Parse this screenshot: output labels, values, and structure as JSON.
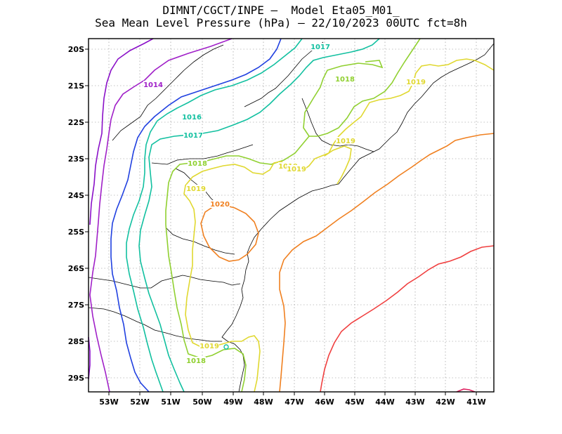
{
  "title": {
    "line1": "DIMNT/CGCT/INPE –  Model Eta05_M01_",
    "line2": "Sea Mean Level Pressure (hPa) – 22/10/2023 00UTC fct=8h"
  },
  "axes": {
    "lon_ticks": [
      "53W",
      "52W",
      "51W",
      "50W",
      "49W",
      "48W",
      "47W",
      "46W",
      "45W",
      "44W",
      "43W",
      "42W",
      "41W"
    ],
    "lat_ticks": [
      "20S",
      "21S",
      "22S",
      "23S",
      "24S",
      "25S",
      "26S",
      "27S",
      "28S",
      "29S"
    ]
  },
  "contour_labels": [
    {
      "text": "1014",
      "color": "#a020c8"
    },
    {
      "text": "1016",
      "color": "#12c0a0"
    },
    {
      "text": "1017",
      "color": "#12c0a0"
    },
    {
      "text": "1017",
      "color": "#12c0a0"
    },
    {
      "text": "1018",
      "color": "#90d030"
    },
    {
      "text": "1018",
      "color": "#90d030"
    },
    {
      "text": "1018",
      "color": "#90d030"
    },
    {
      "text": "1019",
      "color": "#e0d830"
    },
    {
      "text": "1019",
      "color": "#e0d830"
    },
    {
      "text": "1019",
      "color": "#e0d830"
    },
    {
      "text": "1019",
      "color": "#e0d830"
    },
    {
      "text": "1019",
      "color": "#e0d830"
    },
    {
      "text": "1019",
      "color": "#e0d830"
    },
    {
      "text": "1020",
      "color": "#f08020"
    }
  ],
  "colors": {
    "c1013": "#8a10c8",
    "c1014": "#a020c8",
    "c1015": "#2040e0",
    "c1016": "#12c0a0",
    "c1017": "#12c0a0",
    "c1018": "#90d030",
    "c1019": "#e0d830",
    "c1020": "#f08020",
    "c1021": "#f04040",
    "c1022": "#e02060",
    "coast": "#000000",
    "grid": "#888888"
  }
}
